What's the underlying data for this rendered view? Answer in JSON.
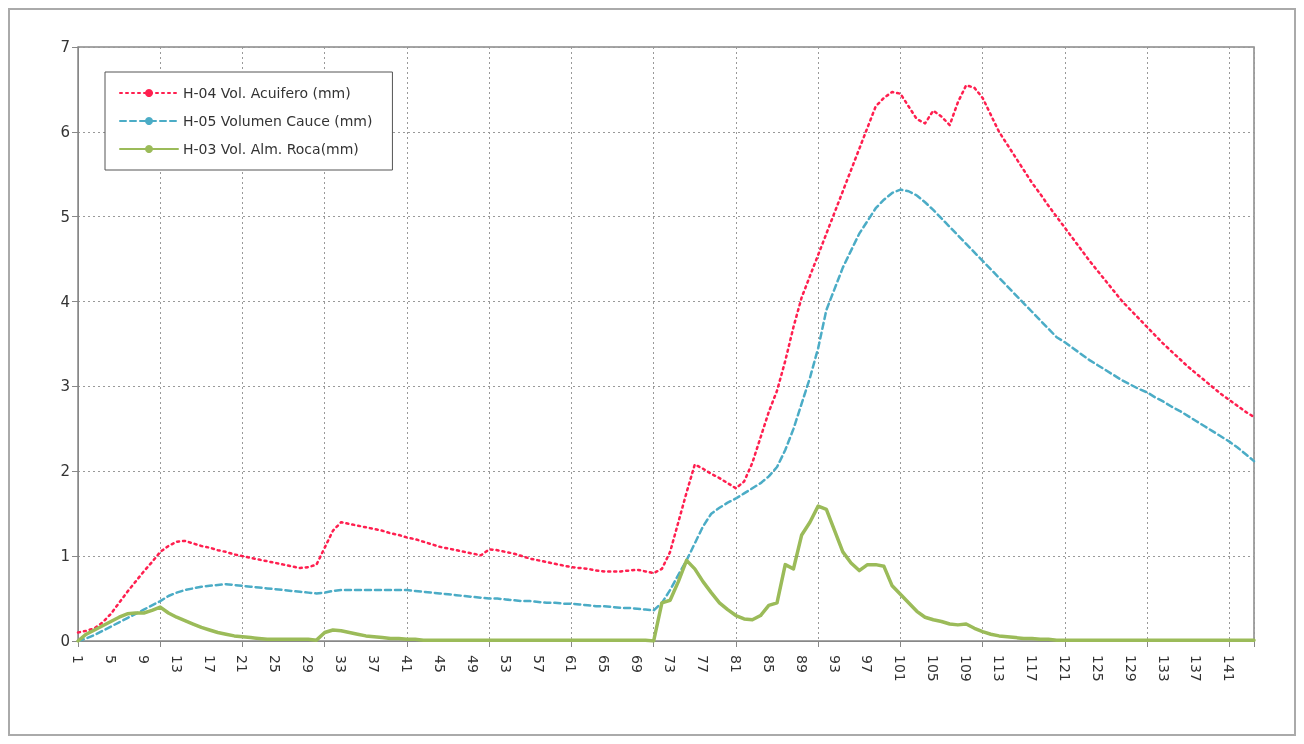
{
  "chart_data": {
    "type": "line",
    "categories": [
      "1",
      null,
      null,
      null,
      "5",
      null,
      null,
      null,
      "9",
      null,
      null,
      null,
      "13",
      null,
      null,
      null,
      "17",
      null,
      null,
      null,
      "21",
      null,
      null,
      null,
      "25",
      null,
      null,
      null,
      "29",
      null,
      null,
      null,
      "33",
      null,
      null,
      null,
      "37",
      null,
      null,
      null,
      "41",
      null,
      null,
      null,
      "45",
      null,
      null,
      null,
      "49",
      null,
      null,
      null,
      "53",
      null,
      null,
      null,
      "57",
      null,
      null,
      null,
      "61",
      null,
      null,
      null,
      "65",
      null,
      null,
      null,
      "69",
      null,
      null,
      null,
      "73",
      null,
      null,
      null,
      "77",
      null,
      null,
      null,
      "81",
      null,
      null,
      null,
      "85",
      null,
      null,
      null,
      "89",
      null,
      null,
      null,
      "93",
      null,
      null,
      null,
      "97",
      null,
      null,
      null,
      "101",
      null,
      null,
      null,
      "105",
      null,
      null,
      null,
      "109",
      null,
      null,
      null,
      "113",
      null,
      null,
      null,
      "117",
      null,
      null,
      null,
      "121",
      null,
      null,
      null,
      "125",
      null,
      null,
      null,
      "129",
      null,
      null,
      null,
      "133",
      null,
      null,
      null,
      "137",
      null,
      null,
      null,
      "141",
      null,
      null,
      null
    ],
    "series": [
      {
        "name": "H-04 Vol. Acuifero (mm)",
        "color": "#ff1f4f",
        "line_style": "dotted",
        "values": [
          0.1,
          0.12,
          0.15,
          0.22,
          0.32,
          0.45,
          0.58,
          0.7,
          0.82,
          0.93,
          1.05,
          1.12,
          1.17,
          1.18,
          1.15,
          1.12,
          1.1,
          1.07,
          1.05,
          1.02,
          1.0,
          0.98,
          0.96,
          0.94,
          0.92,
          0.9,
          0.88,
          0.86,
          0.87,
          0.9,
          1.1,
          1.3,
          1.4,
          1.38,
          1.36,
          1.34,
          1.32,
          1.3,
          1.27,
          1.25,
          1.22,
          1.2,
          1.17,
          1.14,
          1.11,
          1.09,
          1.07,
          1.05,
          1.03,
          1.01,
          1.08,
          1.07,
          1.05,
          1.03,
          1.0,
          0.97,
          0.95,
          0.93,
          0.91,
          0.89,
          0.87,
          0.86,
          0.85,
          0.83,
          0.82,
          0.82,
          0.82,
          0.83,
          0.84,
          0.82,
          0.8,
          0.85,
          1.05,
          1.4,
          1.75,
          2.08,
          2.03,
          1.97,
          1.92,
          1.86,
          1.8,
          1.88,
          2.1,
          2.4,
          2.7,
          2.95,
          3.3,
          3.7,
          4.05,
          4.3,
          4.55,
          4.8,
          5.05,
          5.3,
          5.55,
          5.8,
          6.05,
          6.3,
          6.4,
          6.47,
          6.45,
          6.3,
          6.15,
          6.1,
          6.25,
          6.18,
          6.08,
          6.35,
          6.55,
          6.52,
          6.4,
          6.2,
          6.0,
          5.85,
          5.7,
          5.55,
          5.4,
          5.27,
          5.13,
          5.0,
          4.87,
          4.74,
          4.61,
          4.48,
          4.36,
          4.24,
          4.12,
          4.0,
          3.9,
          3.8,
          3.7,
          3.6,
          3.5,
          3.41,
          3.32,
          3.23,
          3.15,
          3.07,
          2.99,
          2.91,
          2.84,
          2.77,
          2.7,
          2.64
        ]
      },
      {
        "name": "H-05 Volumen Cauce (mm)",
        "color": "#4bacc6",
        "line_style": "dashed",
        "values": [
          0.0,
          0.03,
          0.07,
          0.12,
          0.17,
          0.22,
          0.27,
          0.32,
          0.37,
          0.42,
          0.47,
          0.53,
          0.57,
          0.6,
          0.62,
          0.64,
          0.65,
          0.66,
          0.67,
          0.66,
          0.65,
          0.64,
          0.63,
          0.62,
          0.61,
          0.6,
          0.59,
          0.58,
          0.57,
          0.56,
          0.57,
          0.59,
          0.6,
          0.6,
          0.6,
          0.6,
          0.6,
          0.6,
          0.6,
          0.6,
          0.6,
          0.59,
          0.58,
          0.57,
          0.56,
          0.55,
          0.54,
          0.53,
          0.52,
          0.51,
          0.5,
          0.5,
          0.49,
          0.48,
          0.47,
          0.47,
          0.46,
          0.45,
          0.45,
          0.44,
          0.44,
          0.43,
          0.42,
          0.41,
          0.41,
          0.4,
          0.39,
          0.39,
          0.38,
          0.37,
          0.36,
          0.45,
          0.6,
          0.78,
          0.95,
          1.15,
          1.35,
          1.5,
          1.57,
          1.63,
          1.68,
          1.74,
          1.8,
          1.86,
          1.94,
          2.05,
          2.25,
          2.5,
          2.8,
          3.1,
          3.45,
          3.9,
          4.15,
          4.4,
          4.6,
          4.8,
          4.95,
          5.1,
          5.2,
          5.28,
          5.32,
          5.3,
          5.25,
          5.17,
          5.08,
          4.98,
          4.88,
          4.78,
          4.68,
          4.58,
          4.48,
          4.38,
          4.28,
          4.18,
          4.08,
          3.98,
          3.88,
          3.78,
          3.68,
          3.58,
          3.52,
          3.45,
          3.38,
          3.31,
          3.25,
          3.19,
          3.13,
          3.07,
          3.02,
          2.97,
          2.93,
          2.87,
          2.82,
          2.76,
          2.71,
          2.65,
          2.59,
          2.53,
          2.47,
          2.41,
          2.35,
          2.28,
          2.2,
          2.12
        ]
      },
      {
        "name": "H-03 Vol. Alm. Roca(mm)",
        "color": "#9bbb59",
        "line_style": "solid",
        "values": [
          0.0,
          0.08,
          0.13,
          0.18,
          0.23,
          0.28,
          0.32,
          0.33,
          0.33,
          0.36,
          0.4,
          0.33,
          0.28,
          0.24,
          0.2,
          0.16,
          0.13,
          0.1,
          0.08,
          0.06,
          0.05,
          0.04,
          0.03,
          0.02,
          0.02,
          0.02,
          0.02,
          0.02,
          0.02,
          0.01,
          0.1,
          0.13,
          0.12,
          0.1,
          0.08,
          0.06,
          0.05,
          0.04,
          0.03,
          0.03,
          0.02,
          0.02,
          0.01,
          0.01,
          0.01,
          0.01,
          0.01,
          0.01,
          0.01,
          0.01,
          0.01,
          0.01,
          0.01,
          0.01,
          0.01,
          0.01,
          0.01,
          0.01,
          0.01,
          0.01,
          0.01,
          0.01,
          0.01,
          0.01,
          0.01,
          0.01,
          0.01,
          0.01,
          0.01,
          0.01,
          0.0,
          0.45,
          0.48,
          0.7,
          0.95,
          0.85,
          0.7,
          0.57,
          0.45,
          0.37,
          0.3,
          0.26,
          0.25,
          0.3,
          0.42,
          0.45,
          0.9,
          0.85,
          1.25,
          1.4,
          1.59,
          1.55,
          1.3,
          1.05,
          0.92,
          0.83,
          0.9,
          0.9,
          0.88,
          0.65,
          0.55,
          0.45,
          0.35,
          0.28,
          0.25,
          0.23,
          0.2,
          0.19,
          0.2,
          0.15,
          0.11,
          0.08,
          0.06,
          0.05,
          0.04,
          0.03,
          0.03,
          0.02,
          0.02,
          0.01,
          0.01,
          0.01,
          0.01,
          0.01,
          0.01,
          0.01,
          0.01,
          0.01,
          0.01,
          0.01,
          0.01,
          0.01,
          0.01,
          0.01,
          0.01,
          0.01,
          0.01,
          0.01,
          0.01,
          0.01,
          0.01,
          0.01,
          0.01,
          0.01
        ]
      }
    ],
    "ylim": [
      0,
      7
    ],
    "yticks": [
      0,
      1,
      2,
      3,
      4,
      5,
      6,
      7
    ],
    "grid": true,
    "legend": "top left",
    "marker": "none"
  }
}
